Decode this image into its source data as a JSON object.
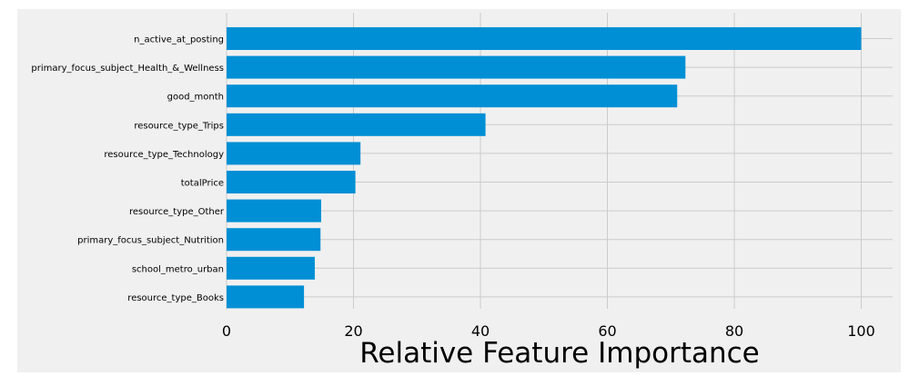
{
  "chart_data": {
    "type": "bar",
    "orientation": "horizontal",
    "categories": [
      "n_active_at_posting",
      "primary_focus_subject_Health_&_Wellness",
      "good_month",
      "resource_type_Trips",
      "resource_type_Technology",
      "totalPrice",
      "resource_type_Other",
      "primary_focus_subject_Nutrition",
      "school_metro_urban",
      "resource_type_Books"
    ],
    "values": [
      100,
      72.3,
      71.0,
      40.8,
      21.1,
      20.3,
      14.9,
      14.8,
      13.9,
      12.2
    ],
    "title": "",
    "xlabel": "Relative Feature Importance",
    "ylabel": "",
    "xlim": [
      0,
      105
    ],
    "xticks": [
      0,
      20,
      40,
      60,
      80,
      100
    ],
    "grid": true,
    "legend": "none",
    "colors": {
      "bar": "#008fd5",
      "plot_background": "#f0f0f0",
      "grid": "#cbcbcb",
      "text": "#000000"
    }
  }
}
